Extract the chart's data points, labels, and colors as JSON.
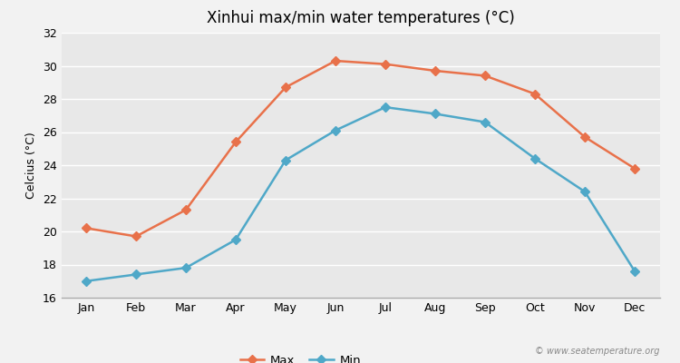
{
  "title": "Xinhui max/min water temperatures (°C)",
  "ylabel": "Celcius (°C)",
  "months": [
    "Jan",
    "Feb",
    "Mar",
    "Apr",
    "May",
    "Jun",
    "Jul",
    "Aug",
    "Sep",
    "Oct",
    "Nov",
    "Dec"
  ],
  "max_temps": [
    20.2,
    19.7,
    21.3,
    25.4,
    28.7,
    30.3,
    30.1,
    29.7,
    29.4,
    28.3,
    25.7,
    23.8
  ],
  "min_temps": [
    17.0,
    17.4,
    17.8,
    19.5,
    24.3,
    26.1,
    27.5,
    27.1,
    26.6,
    24.4,
    22.4,
    17.6
  ],
  "max_color": "#e8714a",
  "min_color": "#4fa8c8",
  "bg_color": "#f2f2f2",
  "plot_bg_color": "#e8e8e8",
  "grid_color": "#ffffff",
  "ylim": [
    16,
    32
  ],
  "yticks": [
    16,
    18,
    20,
    22,
    24,
    26,
    28,
    30,
    32
  ],
  "legend_labels": [
    "Max",
    "Min"
  ],
  "watermark": "© www.seatemperature.org",
  "line_width": 1.8,
  "marker": "D",
  "marker_size": 5
}
